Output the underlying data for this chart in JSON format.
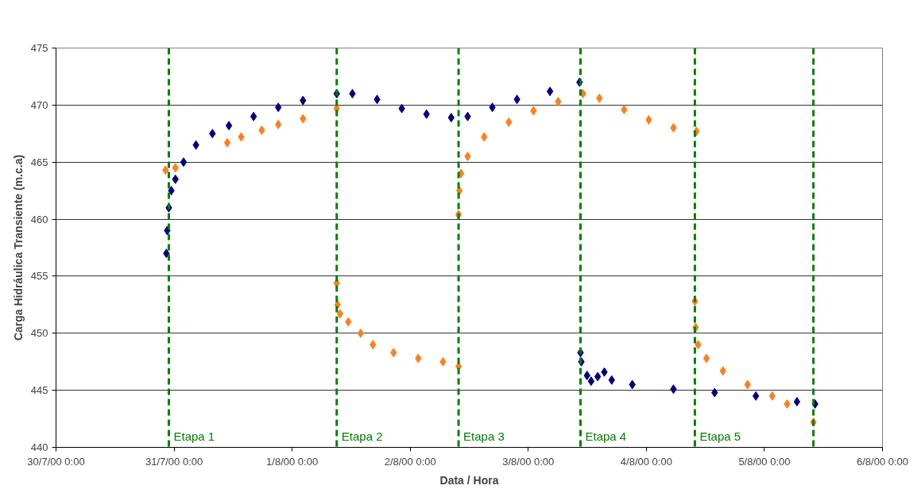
{
  "chart_data": {
    "type": "scatter",
    "xlabel": "Data / Hora",
    "ylabel": "Carga Hidráulica Transiente (m.c.a)",
    "marker": "diamond",
    "grid": "y",
    "xlim": [
      "2000-07-30T00:00",
      "2000-08-06T00:00"
    ],
    "xticks": [
      {
        "value": "2000-07-30T00:00",
        "label": "30/7/00 0:00"
      },
      {
        "value": "2000-07-31T00:00",
        "label": "31/7/00 0:00"
      },
      {
        "value": "2000-08-01T00:00",
        "label": "1/8/00 0:00"
      },
      {
        "value": "2000-08-02T00:00",
        "label": "2/8/00 0:00"
      },
      {
        "value": "2000-08-03T00:00",
        "label": "3/8/00 0:00"
      },
      {
        "value": "2000-08-04T00:00",
        "label": "4/8/00 0:00"
      },
      {
        "value": "2000-08-05T00:00",
        "label": "5/8/00 0:00"
      },
      {
        "value": "2000-08-06T00:00",
        "label": "6/8/00 0:00"
      }
    ],
    "ylim": [
      440,
      475
    ],
    "yticks": [
      440,
      445,
      450,
      455,
      460,
      465,
      470,
      475
    ],
    "series": [
      {
        "color": "#ff7f1e",
        "x": [
          "2000-07-30T22:16",
          "2000-07-31T00:16",
          "2000-07-31T10:49",
          "2000-07-31T13:39",
          "2000-07-31T17:50",
          "2000-07-31T21:11",
          "2000-08-01T02:12",
          "2000-08-01T09:04",
          "2000-08-01T09:04",
          "2000-08-01T09:14",
          "2000-08-01T09:44",
          "2000-08-01T11:25",
          "2000-08-01T13:56",
          "2000-08-01T16:26",
          "2000-08-01T20:37",
          "2000-08-02T01:38",
          "2000-08-02T06:40",
          "2000-08-02T09:50",
          "2000-08-02T09:50",
          "2000-08-02T10:00",
          "2000-08-02T10:20",
          "2000-08-02T11:41",
          "2000-08-02T15:02",
          "2000-08-02T20:03",
          "2000-08-03T01:04",
          "2000-08-03T06:05",
          "2000-08-03T11:07",
          "2000-08-03T14:28",
          "2000-08-03T19:29",
          "2000-08-04T00:30",
          "2000-08-04T05:31",
          "2000-08-04T10:12",
          "2000-08-04T09:52",
          "2000-08-04T10:02",
          "2000-08-04T10:32",
          "2000-08-04T12:13",
          "2000-08-04T15:34",
          "2000-08-04T20:35",
          "2000-08-05T01:36",
          "2000-08-05T04:37",
          "2000-08-05T09:58"
        ],
        "values": [
          464.3,
          464.5,
          466.7,
          467.2,
          467.8,
          468.3,
          468.8,
          469.7,
          454.4,
          452.5,
          451.7,
          451,
          450,
          449,
          448.3,
          447.8,
          447.5,
          447.1,
          460.4,
          462.5,
          464,
          465.5,
          467.2,
          468.5,
          469.5,
          470.3,
          471,
          470.6,
          469.6,
          468.7,
          468,
          467.7,
          452.8,
          450.5,
          449,
          447.8,
          446.7,
          445.5,
          444.5,
          443.8,
          442.2
        ]
      },
      {
        "color": "#000080",
        "x": [
          "2000-07-30T22:26",
          "2000-07-30T22:36",
          "2000-07-30T22:56",
          "2000-07-30T23:26",
          "2000-07-31T00:16",
          "2000-07-31T01:56",
          "2000-07-31T04:27",
          "2000-07-31T07:48",
          "2000-07-31T11:09",
          "2000-07-31T16:10",
          "2000-07-31T21:11",
          "2000-08-01T02:12",
          "2000-08-01T09:04",
          "2000-08-01T12:15",
          "2000-08-01T17:16",
          "2000-08-01T22:17",
          "2000-08-02T03:19",
          "2000-08-02T08:20",
          "2000-08-02T11:41",
          "2000-08-02T16:42",
          "2000-08-02T21:43",
          "2000-08-03T04:25",
          "2000-08-03T10:26",
          "2000-08-03T10:37",
          "2000-08-03T10:47",
          "2000-08-03T11:57",
          "2000-08-03T12:47",
          "2000-08-03T14:07",
          "2000-08-03T15:28",
          "2000-08-03T16:58",
          "2000-08-03T21:09",
          "2000-08-04T05:31",
          "2000-08-04T13:53",
          "2000-08-04T22:16",
          "2000-08-05T06:37",
          "2000-08-05T10:18"
        ],
        "values": [
          457,
          459,
          461,
          462.5,
          463.5,
          465,
          466.5,
          467.5,
          468.2,
          469,
          469.8,
          470.4,
          471,
          471,
          470.5,
          469.7,
          469.2,
          468.9,
          469,
          469.8,
          470.5,
          471.2,
          472,
          448.3,
          447.5,
          446.3,
          445.8,
          446.2,
          446.6,
          445.9,
          445.5,
          445.1,
          444.8,
          444.5,
          444,
          443.8
        ]
      }
    ],
    "ref_lines": [
      {
        "axis": "x",
        "value": "2000-07-30T22:56",
        "label": "Etapa 1",
        "color": "#008000",
        "line_style": "dashed"
      },
      {
        "axis": "x",
        "value": "2000-08-01T09:04",
        "label": "Etapa 2",
        "color": "#008000",
        "line_style": "dashed"
      },
      {
        "axis": "x",
        "value": "2000-08-02T09:50",
        "label": "Etapa 3",
        "color": "#008000",
        "line_style": "dashed"
      },
      {
        "axis": "x",
        "value": "2000-08-03T10:37",
        "label": "Etapa 4",
        "color": "#008000",
        "line_style": "dashed"
      },
      {
        "axis": "x",
        "value": "2000-08-04T09:52",
        "label": "Etapa 5",
        "color": "#008000",
        "line_style": "dashed"
      },
      {
        "axis": "x",
        "value": "2000-08-05T09:58",
        "label": null,
        "color": "#008000",
        "line_style": "dashed"
      }
    ]
  }
}
